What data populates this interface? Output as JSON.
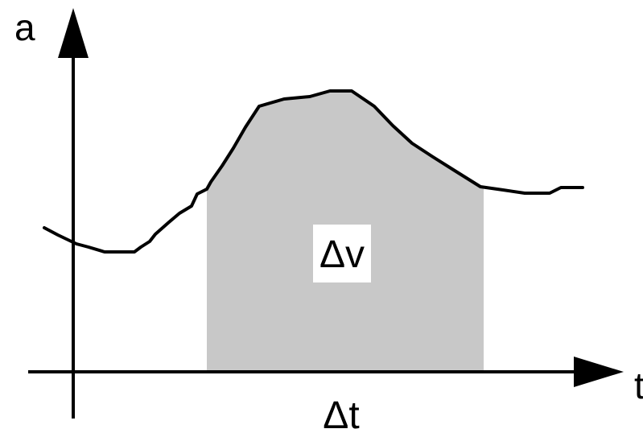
{
  "diagram": {
    "y_axis_label": "a",
    "x_axis_label": "t",
    "area_label": "Δv",
    "interval_label": "Δt",
    "colors": {
      "line": "#000000",
      "area_fill": "#c8c8c8",
      "background": "#ffffff"
    }
  }
}
